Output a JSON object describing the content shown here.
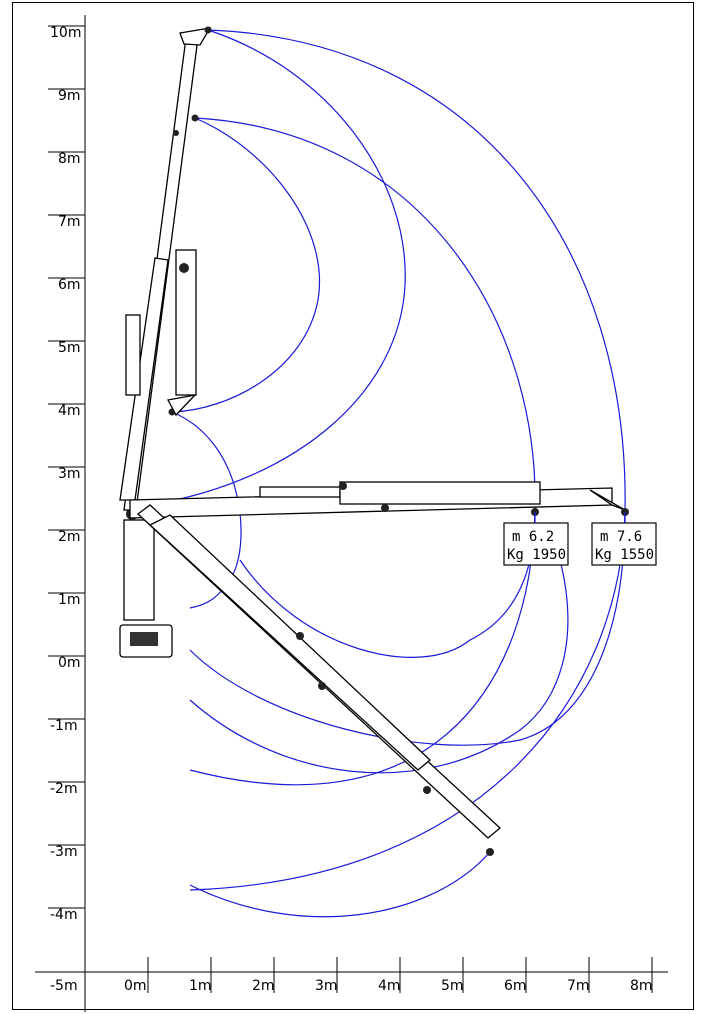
{
  "y_axis": {
    "ticks": [
      "10m",
      "9m",
      "8m",
      "7m",
      "6m",
      "5m",
      "4m",
      "3m",
      "2m",
      "1m",
      "0m",
      "-1m",
      "-2m",
      "-3m",
      "-4m"
    ]
  },
  "x_axis": {
    "ticks": [
      "-5m",
      "0m",
      "1m",
      "2m",
      "3m",
      "4m",
      "5m",
      "6m",
      "7m",
      "8m"
    ]
  },
  "load_labels": [
    {
      "line1": "m  6.2",
      "line2": "Kg  1950"
    },
    {
      "line1": "m  7.6",
      "line2": "Kg  1550"
    }
  ],
  "colors": {
    "reach_arcs": "#1a1ad8",
    "outline": "#000000"
  }
}
